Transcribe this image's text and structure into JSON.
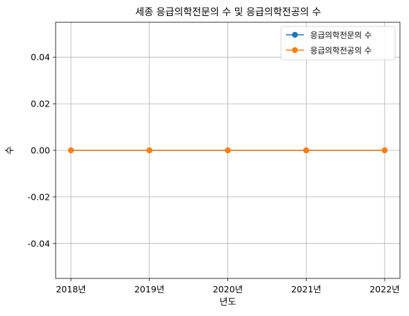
{
  "chart_data": {
    "type": "line",
    "title": "세종 응급의학전문의 수 및 응급의학전공의 수",
    "xlabel": "년도",
    "ylabel": "수",
    "x": [
      "2018년",
      "2019년",
      "2020년",
      "2021년",
      "2022년"
    ],
    "ylim": [
      -0.055,
      0.055
    ],
    "yticks": [
      -0.04,
      -0.02,
      0.0,
      0.02,
      0.04
    ],
    "ytick_labels": [
      "-0.04",
      "-0.02",
      "0.00",
      "0.02",
      "0.04"
    ],
    "grid": true,
    "legend_position": "top-right",
    "series": [
      {
        "name": "응급의학전문의 수",
        "values": [
          0,
          0,
          0,
          0,
          0
        ],
        "color": "#1f77b4",
        "marker": "circle"
      },
      {
        "name": "응급의학전공의 수",
        "values": [
          0,
          0,
          0,
          0,
          0
        ],
        "color": "#ff7f0e",
        "marker": "circle"
      }
    ]
  }
}
